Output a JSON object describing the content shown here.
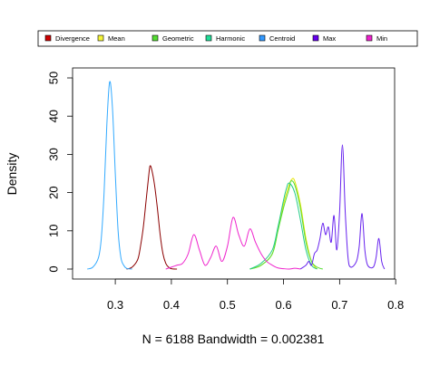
{
  "chart_data": {
    "type": "line",
    "title": "",
    "xlabel": "N = 6188   Bandwidth = 0.002381",
    "ylabel": "Density",
    "xlim": [
      0.24,
      0.79
    ],
    "ylim": [
      0,
      50
    ],
    "xticks": [
      0.3,
      0.4,
      0.5,
      0.6,
      0.7,
      0.8
    ],
    "yticks": [
      0,
      10,
      20,
      30,
      40,
      50
    ],
    "grid": false,
    "legend_position": "top",
    "series": [
      {
        "name": "Divergence",
        "color": "#cc0000",
        "line_color": "#8b0000",
        "x": [
          0.32,
          0.33,
          0.34,
          0.345,
          0.35,
          0.355,
          0.36,
          0.362,
          0.365,
          0.37,
          0.375,
          0.38,
          0.385,
          0.39,
          0.395,
          0.4,
          0.41
        ],
        "y": [
          0,
          0.5,
          2.5,
          6,
          11,
          18,
          25,
          27,
          26,
          22,
          16,
          9,
          4,
          1.5,
          0.5,
          0.1,
          0
        ]
      },
      {
        "name": "Mean",
        "color": "#f5f53a",
        "line_color": "#e5e500",
        "x": [
          0.54,
          0.56,
          0.58,
          0.59,
          0.6,
          0.61,
          0.615,
          0.62,
          0.63,
          0.64,
          0.65,
          0.66
        ],
        "y": [
          0,
          1,
          4,
          10,
          17,
          22,
          23.5,
          23,
          17,
          8,
          2,
          0
        ]
      },
      {
        "name": "Geometric",
        "color": "#55dd33",
        "line_color": "#55dd33",
        "x": [
          0.54,
          0.56,
          0.58,
          0.59,
          0.6,
          0.61,
          0.613,
          0.62,
          0.63,
          0.64,
          0.65,
          0.66,
          0.67
        ],
        "y": [
          0,
          1,
          4,
          10,
          16,
          21,
          23,
          22,
          16,
          7,
          2,
          0.5,
          0
        ]
      },
      {
        "name": "Harmonic",
        "color": "#22dd99",
        "line_color": "#22cc88",
        "x": [
          0.54,
          0.56,
          0.58,
          0.59,
          0.6,
          0.605,
          0.61,
          0.62,
          0.63,
          0.64,
          0.65,
          0.66
        ],
        "y": [
          0,
          1.5,
          5,
          11,
          18,
          21,
          22.5,
          20,
          13,
          5,
          1,
          0
        ]
      },
      {
        "name": "Centroid",
        "color": "#3399ff",
        "line_color": "#33aaff",
        "x": [
          0.25,
          0.26,
          0.27,
          0.275,
          0.28,
          0.285,
          0.29,
          0.295,
          0.3,
          0.305,
          0.31,
          0.315,
          0.32,
          0.33
        ],
        "y": [
          0,
          0.5,
          3,
          8,
          20,
          38,
          49,
          42,
          25,
          10,
          3,
          1,
          0.2,
          0
        ]
      },
      {
        "name": "Max",
        "color": "#6600ee",
        "line_color": "#6622ee",
        "x": [
          0.63,
          0.64,
          0.645,
          0.65,
          0.655,
          0.66,
          0.665,
          0.67,
          0.675,
          0.68,
          0.685,
          0.69,
          0.695,
          0.7,
          0.705,
          0.71,
          0.715,
          0.72,
          0.73,
          0.735,
          0.74,
          0.745,
          0.75,
          0.76,
          0.765,
          0.77,
          0.775,
          0.78
        ],
        "y": [
          0,
          1,
          2,
          1,
          4,
          5,
          8,
          12,
          9,
          11,
          7,
          14,
          5,
          15,
          32.5,
          15,
          3,
          0.5,
          2,
          6,
          14.5,
          5,
          1,
          0.5,
          3,
          8,
          2,
          0
        ]
      },
      {
        "name": "Min",
        "color": "#ee22cc",
        "line_color": "#ee22cc",
        "x": [
          0.39,
          0.4,
          0.41,
          0.42,
          0.43,
          0.44,
          0.45,
          0.46,
          0.47,
          0.48,
          0.49,
          0.5,
          0.51,
          0.52,
          0.53,
          0.54,
          0.55,
          0.56,
          0.57,
          0.58,
          0.59,
          0.6,
          0.61,
          0.62,
          0.63
        ],
        "y": [
          0,
          0.5,
          1,
          1.5,
          4,
          9,
          5,
          1,
          3,
          6,
          2,
          6,
          13.5,
          9,
          6,
          10.5,
          7,
          4,
          2,
          1,
          0.3,
          0.1,
          0,
          0.2,
          0
        ]
      }
    ]
  }
}
